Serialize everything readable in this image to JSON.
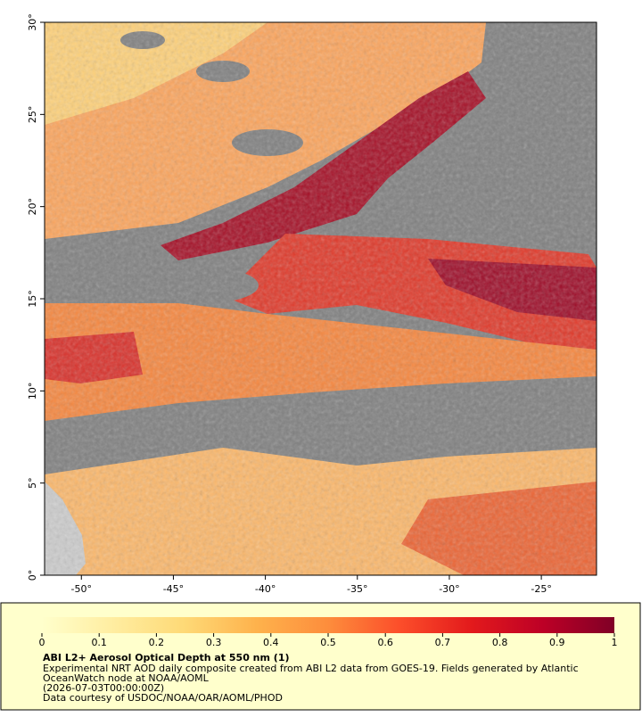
{
  "chart_data": {
    "type": "map",
    "title": "ABI L2+ Aerosol Optical Depth at 550 nm (1)",
    "notes": [
      "Experimental NRT AOD daily composite created from ABI L2 data from GOES-19. Fields generated by Atlantic",
      "OceanWatch node at NOAA/AOML",
      "(2026-07-03T00:00:00Z)",
      "Data courtesy of USDOC/NOAA/OAR/AOML/PHOD"
    ],
    "xlim": [
      -52,
      -22
    ],
    "ylim": [
      0,
      30
    ],
    "xticks": [
      {
        "value": -50,
        "label": "-50°"
      },
      {
        "value": -45,
        "label": "-45°"
      },
      {
        "value": -40,
        "label": "-40°"
      },
      {
        "value": -35,
        "label": "-35°"
      },
      {
        "value": -30,
        "label": "-30°"
      },
      {
        "value": -25,
        "label": "-25°"
      }
    ],
    "yticks": [
      {
        "value": 0,
        "label": "0°"
      },
      {
        "value": 5,
        "label": "5°"
      },
      {
        "value": 10,
        "label": "10°"
      },
      {
        "value": 15,
        "label": "15°"
      },
      {
        "value": 20,
        "label": "20°"
      },
      {
        "value": 25,
        "label": "25°"
      },
      {
        "value": 30,
        "label": "30°"
      }
    ],
    "colorbar": {
      "lim": [
        0,
        1
      ],
      "ticks": [
        0,
        0.1,
        0.2,
        0.3,
        0.4,
        0.5,
        0.6,
        0.7,
        0.8,
        0.9,
        1
      ],
      "colors": [
        "#ffffcc",
        "#ffeda0",
        "#fed976",
        "#feb24c",
        "#fd8d3c",
        "#fc4e2a",
        "#e31a1c",
        "#bd0026",
        "#800026"
      ]
    }
  }
}
